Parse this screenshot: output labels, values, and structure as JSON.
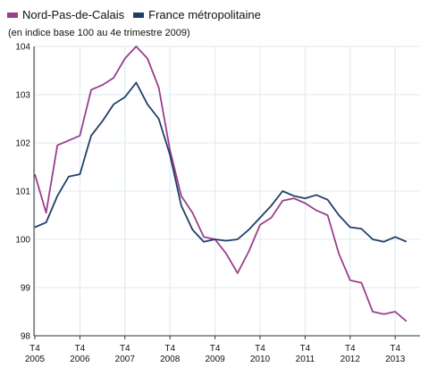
{
  "chart_data": {
    "type": "line",
    "title": "",
    "subtitle": "(en indice base 100 au 4e trimestre 2009)",
    "xlabel": "",
    "ylabel": "",
    "ylim": [
      98,
      104
    ],
    "yticks": [
      "98",
      "99",
      "100",
      "101",
      "102",
      "103",
      "104"
    ],
    "xticks": [
      {
        "top": "T4",
        "bottom": "2005"
      },
      {
        "top": "T4",
        "bottom": "2006"
      },
      {
        "top": "T4",
        "bottom": "2007"
      },
      {
        "top": "T4",
        "bottom": "2008"
      },
      {
        "top": "T4",
        "bottom": "2009"
      },
      {
        "top": "T4",
        "bottom": "2010"
      },
      {
        "top": "T4",
        "bottom": "2011"
      },
      {
        "top": "T4",
        "bottom": "2012"
      },
      {
        "top": "T4",
        "bottom": "2013"
      }
    ],
    "x": [
      "2005-T4",
      "2006-T1",
      "2006-T2",
      "2006-T3",
      "2006-T4",
      "2007-T1",
      "2007-T2",
      "2007-T3",
      "2007-T4",
      "2008-T1",
      "2008-T2",
      "2008-T3",
      "2008-T4",
      "2009-T1",
      "2009-T2",
      "2009-T3",
      "2009-T4",
      "2010-T1",
      "2010-T2",
      "2010-T3",
      "2010-T4",
      "2011-T1",
      "2011-T2",
      "2011-T3",
      "2011-T4",
      "2012-T1",
      "2012-T2",
      "2012-T3",
      "2012-T4",
      "2013-T1",
      "2013-T2",
      "2013-T3",
      "2013-T4",
      "2014-T1"
    ],
    "grid": true,
    "legend_position": "top-left",
    "series": [
      {
        "name": "Nord-Pas-de-Calais",
        "color": "#9b3f8d",
        "values": [
          101.35,
          100.55,
          101.95,
          102.05,
          102.15,
          103.1,
          103.2,
          103.35,
          103.75,
          104.0,
          103.75,
          103.15,
          101.85,
          100.9,
          100.55,
          100.05,
          100.0,
          99.7,
          99.3,
          99.75,
          100.3,
          100.45,
          100.8,
          100.85,
          100.75,
          100.6,
          100.5,
          99.7,
          99.15,
          99.1,
          98.5,
          98.45,
          98.5,
          98.3
        ]
      },
      {
        "name": "France métropolitaine",
        "color": "#1f3f68",
        "values": [
          100.25,
          100.35,
          100.9,
          101.3,
          101.35,
          102.15,
          102.45,
          102.8,
          102.95,
          103.25,
          102.8,
          102.5,
          101.75,
          100.7,
          100.2,
          99.95,
          100.0,
          99.97,
          100.0,
          100.2,
          100.45,
          100.7,
          101.0,
          100.9,
          100.85,
          100.92,
          100.82,
          100.5,
          100.25,
          100.22,
          100.0,
          99.95,
          100.05,
          99.95
        ]
      }
    ]
  }
}
